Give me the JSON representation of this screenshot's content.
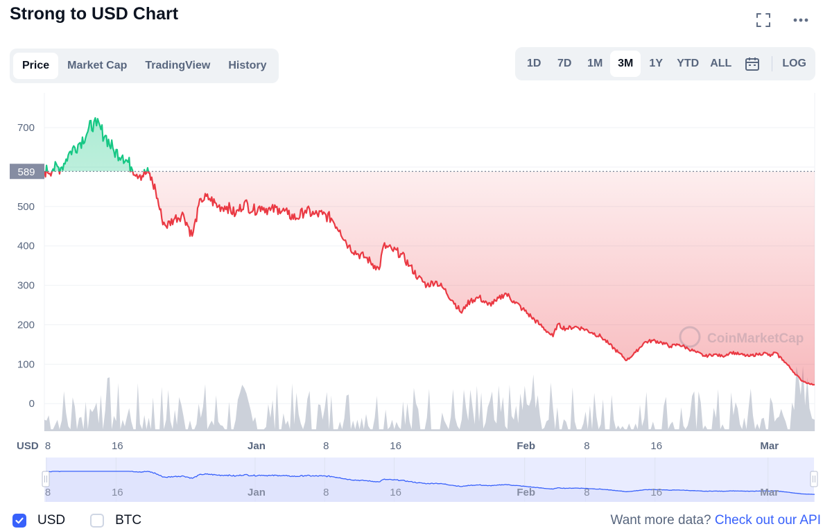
{
  "header": {
    "title": "Strong to USD Chart",
    "icons": [
      "fullscreen-icon",
      "more-icon"
    ]
  },
  "tabs": [
    {
      "label": "Price",
      "active": true
    },
    {
      "label": "Market Cap",
      "active": false
    },
    {
      "label": "TradingView",
      "active": false
    },
    {
      "label": "History",
      "active": false
    }
  ],
  "ranges": [
    {
      "label": "1D",
      "active": false
    },
    {
      "label": "7D",
      "active": false
    },
    {
      "label": "1M",
      "active": false
    },
    {
      "label": "3M",
      "active": true
    },
    {
      "label": "1Y",
      "active": false
    },
    {
      "label": "YTD",
      "active": false
    },
    {
      "label": "ALL",
      "active": false
    }
  ],
  "calendar_icon": "calendar-icon",
  "log_label": "LOG",
  "legend": {
    "usd_label": "USD",
    "usd_checked": true,
    "btc_label": "BTC",
    "btc_checked": false
  },
  "footer": {
    "prefix": "Want more data?",
    "link": "Check out our API"
  },
  "colors": {
    "up": "#16c784",
    "down": "#ea3943",
    "volume": "#c7ccd6",
    "nav_line": "#3861fb",
    "accent": "#3861fb"
  },
  "chart_data": {
    "type": "line",
    "title": "Strong to USD Chart",
    "currency_label": "USD",
    "watermark": "CoinMarketCap",
    "ylim": [
      -70,
      760
    ],
    "yticks": [
      0,
      100,
      200,
      300,
      400,
      500,
      600,
      700
    ],
    "ytick_labels": [
      "0",
      "100",
      "200",
      "300",
      "400",
      "500",
      "",
      "700"
    ],
    "reference_price": 589,
    "reference_label": "589",
    "xticks": [
      {
        "day": 0,
        "label": "8"
      },
      {
        "day": 8,
        "label": "16"
      },
      {
        "day": 24,
        "label": "Jan",
        "bold": true
      },
      {
        "day": 32,
        "label": "8"
      },
      {
        "day": 40,
        "label": "16"
      },
      {
        "day": 55,
        "label": "Feb",
        "bold": true
      },
      {
        "day": 62,
        "label": "8"
      },
      {
        "day": 70,
        "label": "16"
      },
      {
        "day": 83,
        "label": "Mar",
        "bold": true
      }
    ],
    "series": [
      {
        "name": "USD",
        "x": [
          0,
          1,
          2,
          2.5,
          3,
          4,
          5,
          5.7,
          6,
          7,
          8,
          9,
          10,
          11,
          12,
          12.8,
          13.5,
          14,
          15,
          16,
          17,
          18,
          19,
          20,
          21,
          22,
          23,
          24,
          25,
          26,
          27,
          28,
          29,
          30,
          31,
          32,
          33,
          34,
          35,
          36,
          37,
          38,
          38.5,
          39,
          40,
          41,
          42,
          43,
          44,
          45,
          46,
          47,
          48,
          48.5,
          49,
          50,
          51,
          52,
          53,
          54,
          55,
          56,
          57,
          58,
          58.5,
          59,
          60,
          61,
          62,
          63,
          64,
          65,
          66,
          67,
          68,
          69,
          70,
          71,
          72,
          73,
          74,
          75,
          76,
          77,
          78,
          79,
          80,
          81,
          82,
          83,
          83.5,
          84,
          85,
          86,
          87,
          88,
          88.6
        ],
        "y": [
          589,
          595,
          600,
          620,
          640,
          660,
          690,
          715,
          705,
          680,
          640,
          630,
          600,
          580,
          585,
          540,
          470,
          450,
          470,
          480,
          425,
          520,
          520,
          500,
          500,
          480,
          510,
          490,
          500,
          490,
          495,
          480,
          470,
          490,
          480,
          480,
          470,
          440,
          400,
          380,
          370,
          350,
          340,
          400,
          390,
          380,
          350,
          320,
          300,
          310,
          290,
          260,
          230,
          250,
          260,
          270,
          250,
          260,
          280,
          260,
          240,
          220,
          200,
          180,
          170,
          200,
          190,
          195,
          190,
          180,
          170,
          150,
          130,
          110,
          130,
          155,
          160,
          155,
          145,
          150,
          140,
          130,
          120,
          125,
          120,
          130,
          125,
          120,
          125,
          128,
          120,
          130,
          110,
          85,
          60,
          50,
          48
        ]
      }
    ],
    "volume": {
      "x": [
        0,
        2,
        4,
        5.5,
        6,
        6.5,
        7,
        8,
        9,
        10,
        12,
        14,
        16,
        18,
        20,
        22,
        24,
        26,
        28,
        30,
        32,
        34,
        36,
        37,
        38,
        40,
        42,
        44,
        46,
        48,
        50,
        52,
        54,
        55,
        56,
        56.5,
        57,
        58,
        60,
        62,
        64,
        66,
        68,
        70,
        72,
        74,
        76,
        78,
        80,
        82,
        84,
        85,
        86,
        87,
        88,
        88.6
      ],
      "y": [
        0.3,
        0.28,
        0.35,
        0.5,
        0.75,
        0.95,
        0.55,
        0.4,
        0.3,
        0.25,
        0.35,
        0.3,
        0.4,
        0.35,
        0.25,
        0.3,
        0.25,
        0.35,
        0.28,
        0.25,
        0.3,
        0.25,
        0.3,
        0.45,
        0.35,
        0.3,
        0.25,
        0.35,
        0.28,
        0.3,
        0.25,
        0.2,
        0.3,
        0.55,
        0.85,
        0.6,
        0.4,
        0.3,
        0.25,
        0.2,
        0.18,
        0.15,
        0.2,
        0.25,
        0.18,
        0.15,
        0.15,
        0.18,
        0.18,
        0.2,
        0.25,
        0.4,
        0.75,
        0.95,
        0.6,
        0.3
      ]
    },
    "navigator": {
      "labels": [
        "8",
        "16",
        "Jan",
        "8",
        "16",
        "Feb",
        "8",
        "16",
        "Mar"
      ]
    }
  }
}
